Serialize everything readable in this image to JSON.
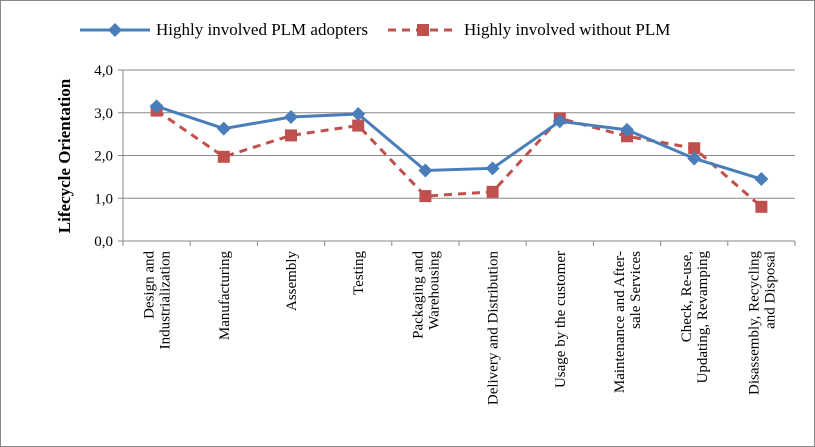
{
  "chart_data": {
    "type": "line",
    "y_label": "Lifecycle Orientation",
    "categories": [
      "Design and\nIndustrialization",
      "Manufacturing",
      "Assembly",
      "Testing",
      "Packaging and\nWarehousing",
      "Delivery and Distribution",
      "Usage by the customer",
      "Maintenance and After-\nsale Services",
      "Check, Re-use,\nUpdating, Revamping",
      "Disassembly, Recycling\nand Disposal"
    ],
    "series": [
      {
        "name": "Highly involved PLM adopters",
        "color": "#4a7ebb",
        "marker": "diamond",
        "dashed": false,
        "values": [
          3.15,
          2.63,
          2.9,
          2.97,
          1.65,
          1.7,
          2.8,
          2.6,
          1.93,
          1.45
        ]
      },
      {
        "name": "Highly involved without PLM",
        "color": "#c0504d",
        "marker": "square",
        "dashed": true,
        "values": [
          3.05,
          1.97,
          2.47,
          2.7,
          1.05,
          1.15,
          2.87,
          2.45,
          2.17,
          0.8
        ]
      }
    ],
    "ylim": [
      0,
      4
    ],
    "yticks": [
      {
        "value": 0,
        "label": "0,0"
      },
      {
        "value": 1,
        "label": "1,0"
      },
      {
        "value": 2,
        "label": "2,0"
      },
      {
        "value": 3,
        "label": "3,0"
      },
      {
        "value": 4,
        "label": "4,0"
      }
    ],
    "grid": true,
    "legend": "top"
  }
}
